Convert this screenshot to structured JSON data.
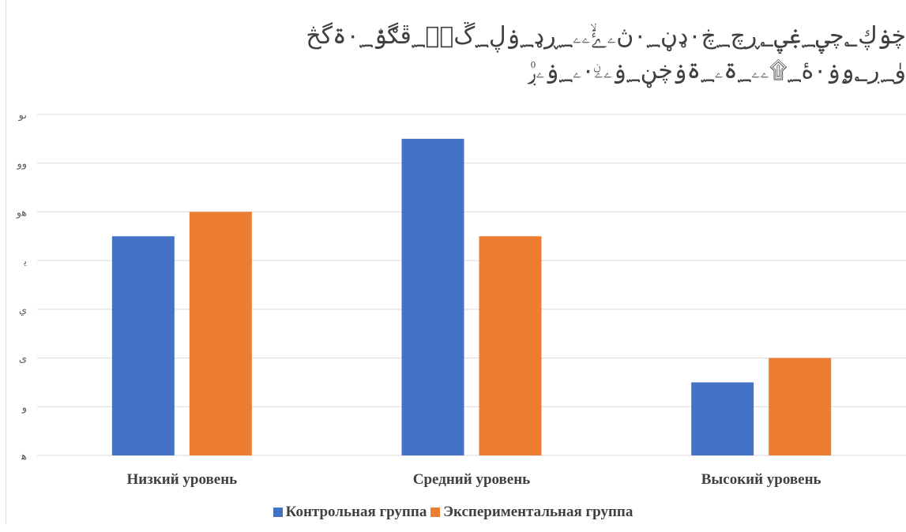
{
  "chart_data": {
    "type": "bar",
    "title_lines": [
      "ڿۏڮ؂چۑ؁ۼۑ؂ڕچ؁ڿ۰ډڼ۰؁ڽۦۓۙۦۦ؁ڕډ؁ۏڸ؁ڱۖۦ؁ڦڰۏۨ۰؁ۃگڅ",
      "ۈ؁ڔ؂ۄۏ۰ۀ؁۩ۦۦ؁ۃۦ؁ۃۏڿڼ؁ۏۦۦۨ۰ۦ؁ۏۦڔ۠"
    ],
    "y_tick_labels": [
      "ﮬ",
      "و",
      "ى",
      "ي",
      "ﻳ",
      "ﮬو",
      "وو",
      "ىو"
    ],
    "ylim": [
      0,
      14
    ],
    "grid": true,
    "categories": [
      "Низкий уровень",
      "Средний уровень",
      "Высокий уровень"
    ],
    "series": [
      {
        "name": "Контрольная группа",
        "values": [
          9,
          13,
          3
        ],
        "color": "#4472C4"
      },
      {
        "name": "Экспериментальная группа",
        "values": [
          10,
          9,
          4
        ],
        "color": "#ED7D31"
      }
    ],
    "legend_position": "bottom"
  }
}
